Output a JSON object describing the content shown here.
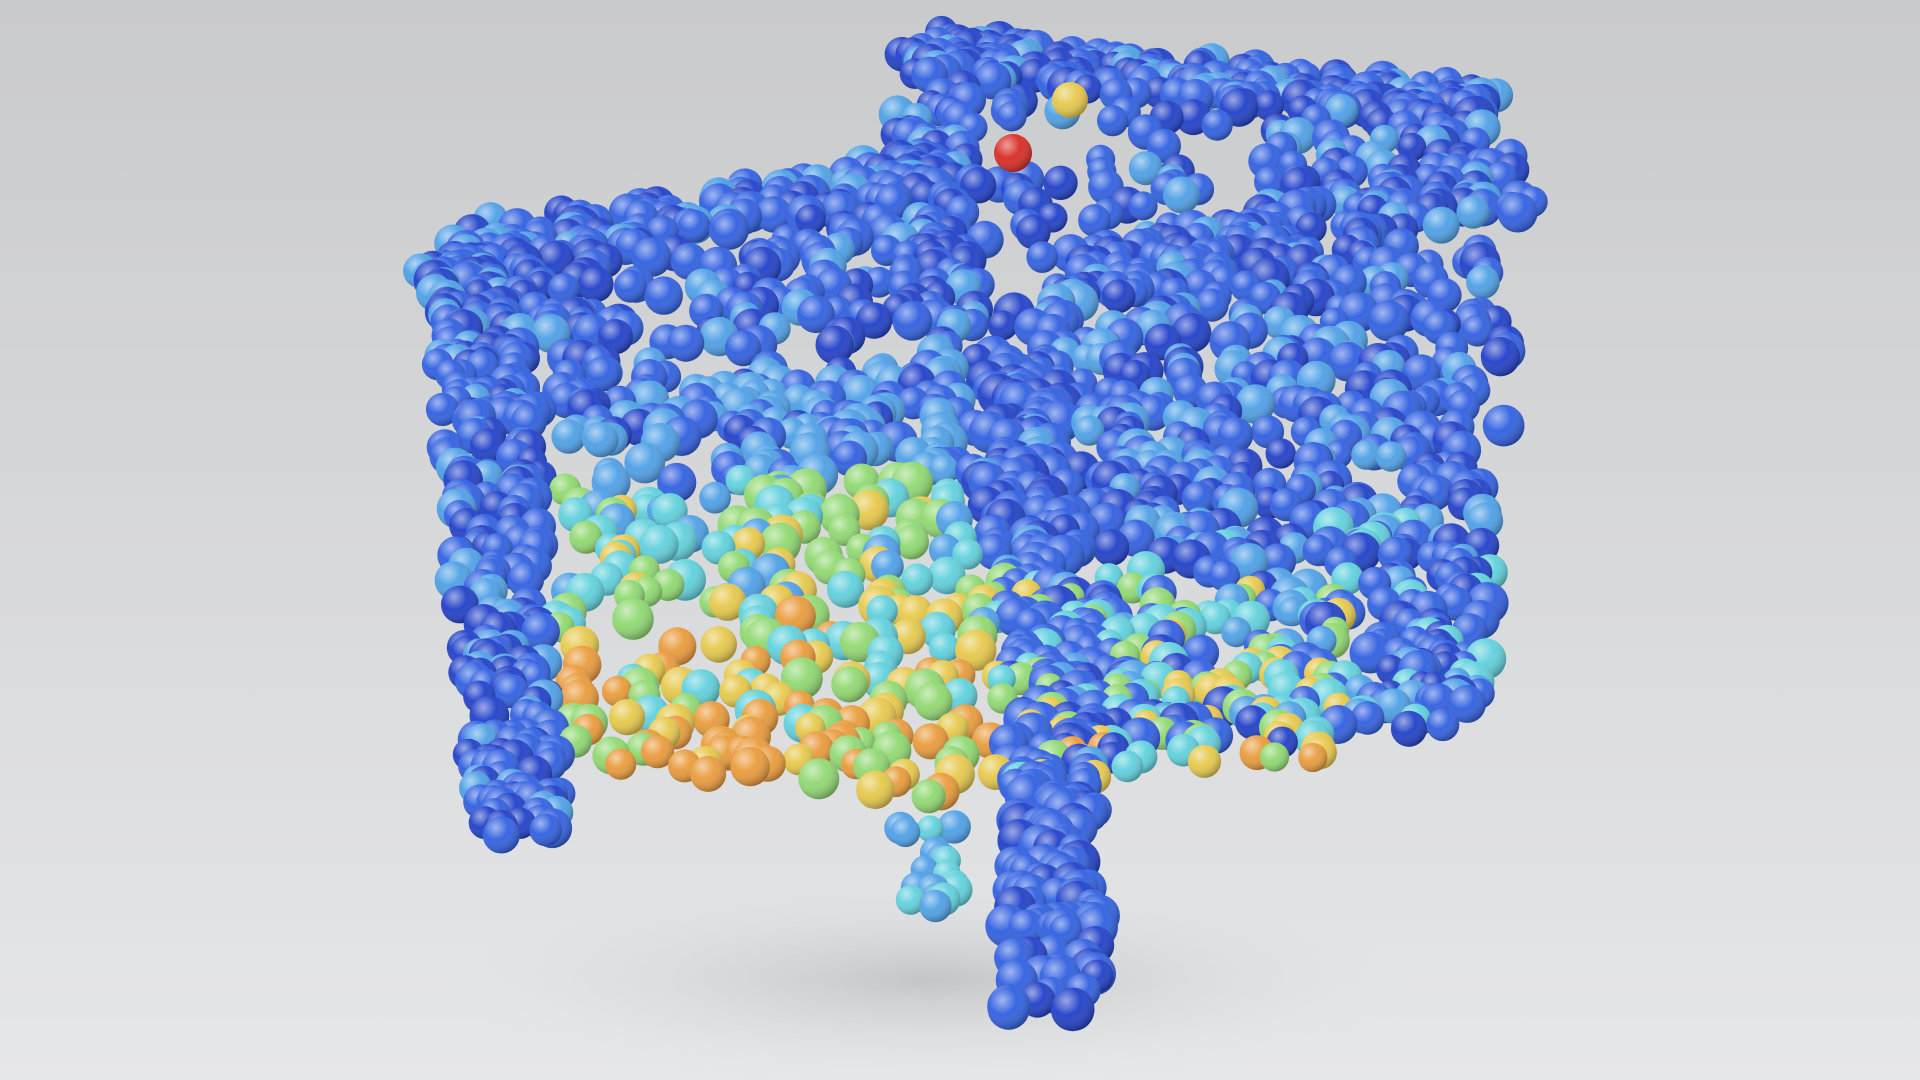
{
  "scene": {
    "subject": "chair-point-cloud",
    "background_top": "#c9cacc",
    "background_bottom": "#e6e7e9",
    "shadow_color": "#b9babd",
    "palette": {
      "deep_blue": "#1f3fc8",
      "blue": "#2f5fe0",
      "light_blue": "#4d9fe6",
      "cyan": "#5fd0dc",
      "green": "#8fd870",
      "yellow": "#e6c84a",
      "orange": "#e99a3a",
      "red": "#d92a22"
    },
    "highlight_points": [
      {
        "name": "red-point",
        "color": "#d92a22"
      },
      {
        "name": "yellow-point",
        "color": "#e6c84a"
      }
    ]
  }
}
